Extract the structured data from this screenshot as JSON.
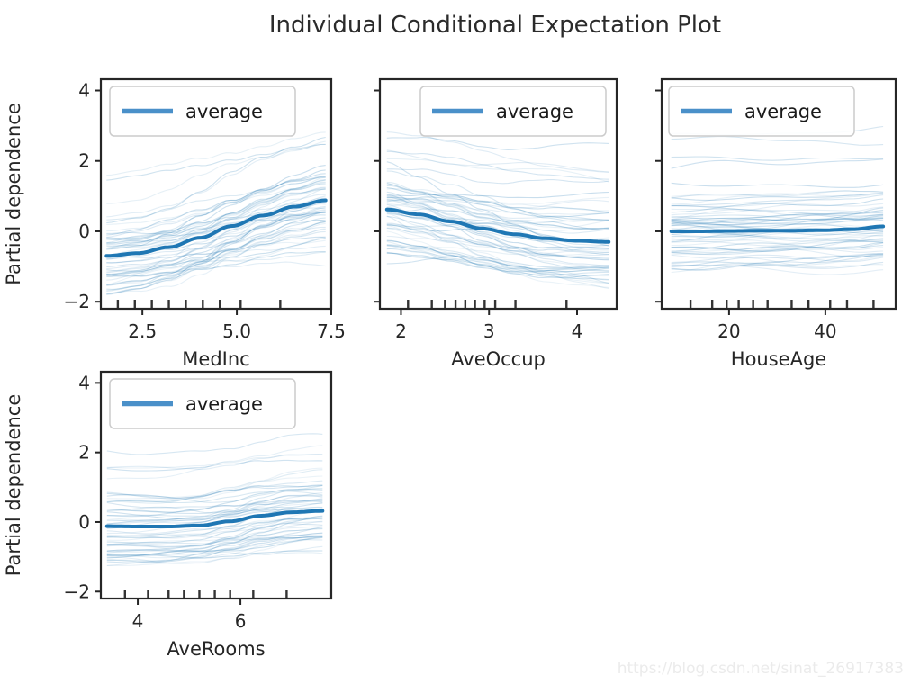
{
  "figure": {
    "title": "Individual Conditional Expectation Plot",
    "watermark": "https://blog.csdn.net/sinat_26917383",
    "background": "#ffffff"
  },
  "colors": {
    "line": "#1f77b4",
    "legend_swatch": "#4a90c9",
    "axis": "#262626",
    "tick_label": "#262626",
    "legend_border": "#cccccc",
    "legend_text": "#1a1a1a",
    "watermark": "#ebebeb",
    "rug": "#333333"
  },
  "chart_data": {
    "type": "line",
    "title": "Individual Conditional Expectation Plot",
    "ylabel": "Partial dependence",
    "legend_label": "average",
    "legend_position": "upper left",
    "grid": false,
    "ylim": [
      -2.2,
      4.32
    ],
    "yticks": [
      -2,
      0,
      2,
      4
    ],
    "ytick_labels": [
      "−2",
      "0",
      "2",
      "4"
    ],
    "subplots": [
      {
        "feature": "MedInc",
        "xlabel": "MedInc",
        "xlim": [
          1.4,
          7.5
        ],
        "xticks": [
          2.5,
          5.0,
          7.5
        ],
        "xtick_labels": [
          "2.5",
          "5.0",
          "7.5"
        ],
        "x_span": [
          1.55,
          7.35
        ],
        "average_y": [
          -0.7,
          -0.62,
          -0.45,
          -0.18,
          0.15,
          0.45,
          0.7,
          0.88
        ],
        "rug": [
          1.85,
          2.3,
          2.75,
          3.2,
          3.65,
          4.1,
          4.55,
          5.1,
          6.15
        ],
        "show_ytick_labels": true,
        "show_ylabel": true,
        "legend_left": 10,
        "seed": 11,
        "ice": {
          "count": 55,
          "offset": [
            -0.95,
            0.85
          ],
          "skew": 1.35,
          "follow": [
            0.4,
            1.7
          ],
          "drift": 0.5,
          "noise": 0.12,
          "outlier_count": 5,
          "outlier_offset": [
            1.0,
            2.3
          ],
          "outlier_follow": [
            0.9,
            1.9
          ]
        }
      },
      {
        "feature": "AveOccup",
        "xlabel": "AveOccup",
        "xlim": [
          1.76,
          4.45
        ],
        "xticks": [
          2,
          3,
          4
        ],
        "xtick_labels": [
          "2",
          "3",
          "4"
        ],
        "x_span": [
          1.84,
          4.36
        ],
        "average_y": [
          0.62,
          0.48,
          0.28,
          0.08,
          -0.08,
          -0.2,
          -0.27,
          -0.3
        ],
        "rug": [
          2.08,
          2.35,
          2.5,
          2.62,
          2.73,
          2.84,
          2.95,
          3.07,
          3.3,
          3.88
        ],
        "show_ytick_labels": false,
        "show_ylabel": false,
        "legend_left": 45,
        "seed": 22,
        "ice": {
          "count": 55,
          "offset": [
            -1.05,
            1.0
          ],
          "skew": 1.3,
          "follow": [
            0.2,
            2.2
          ],
          "drift": 0.45,
          "noise": 0.13,
          "outlier_count": 6,
          "outlier_offset": [
            1.2,
            2.6
          ],
          "outlier_follow": [
            0.3,
            1.2
          ]
        }
      },
      {
        "feature": "HouseAge",
        "xlabel": "HouseAge",
        "xlim": [
          6.0,
          54.6
        ],
        "xticks": [
          20,
          40
        ],
        "xtick_labels": [
          "20",
          "40"
        ],
        "x_span": [
          8,
          52
        ],
        "average_y": [
          0.0,
          0.0,
          0.01,
          0.02,
          0.02,
          0.03,
          0.06,
          0.14
        ],
        "rug": [
          12,
          16.5,
          19.5,
          22,
          25,
          28,
          33,
          36.5,
          41,
          44.5,
          50
        ],
        "show_ytick_labels": false,
        "show_ylabel": false,
        "legend_left": 8,
        "seed": 33,
        "ice": {
          "count": 56,
          "offset": [
            -1.05,
            1.0
          ],
          "skew": 1.3,
          "follow": [
            0.3,
            1.2
          ],
          "drift": 0.35,
          "noise": 0.1,
          "outlier_count": 5,
          "outlier_offset": [
            1.3,
            2.9
          ],
          "outlier_follow": [
            0.2,
            0.8
          ]
        }
      },
      {
        "feature": "AveRooms",
        "xlabel": "AveRooms",
        "xlim": [
          3.28,
          7.77
        ],
        "xticks": [
          4,
          6
        ],
        "xtick_labels": [
          "4",
          "6"
        ],
        "x_span": [
          3.4,
          7.6
        ],
        "average_y": [
          -0.12,
          -0.13,
          -0.13,
          -0.1,
          0.02,
          0.18,
          0.28,
          0.32
        ],
        "rug": [
          3.75,
          4.2,
          4.6,
          4.9,
          5.2,
          5.5,
          5.8,
          6.25,
          6.9
        ],
        "show_ytick_labels": true,
        "show_ylabel": true,
        "legend_left": 10,
        "seed": 44,
        "ice": {
          "count": 52,
          "offset": [
            -1.05,
            0.95
          ],
          "skew": 1.3,
          "follow": [
            0.5,
            1.8
          ],
          "drift": 0.4,
          "noise": 0.1,
          "outlier_count": 5,
          "outlier_offset": [
            1.1,
            2.3
          ],
          "outlier_follow": [
            1.0,
            2.0
          ]
        }
      }
    ]
  }
}
